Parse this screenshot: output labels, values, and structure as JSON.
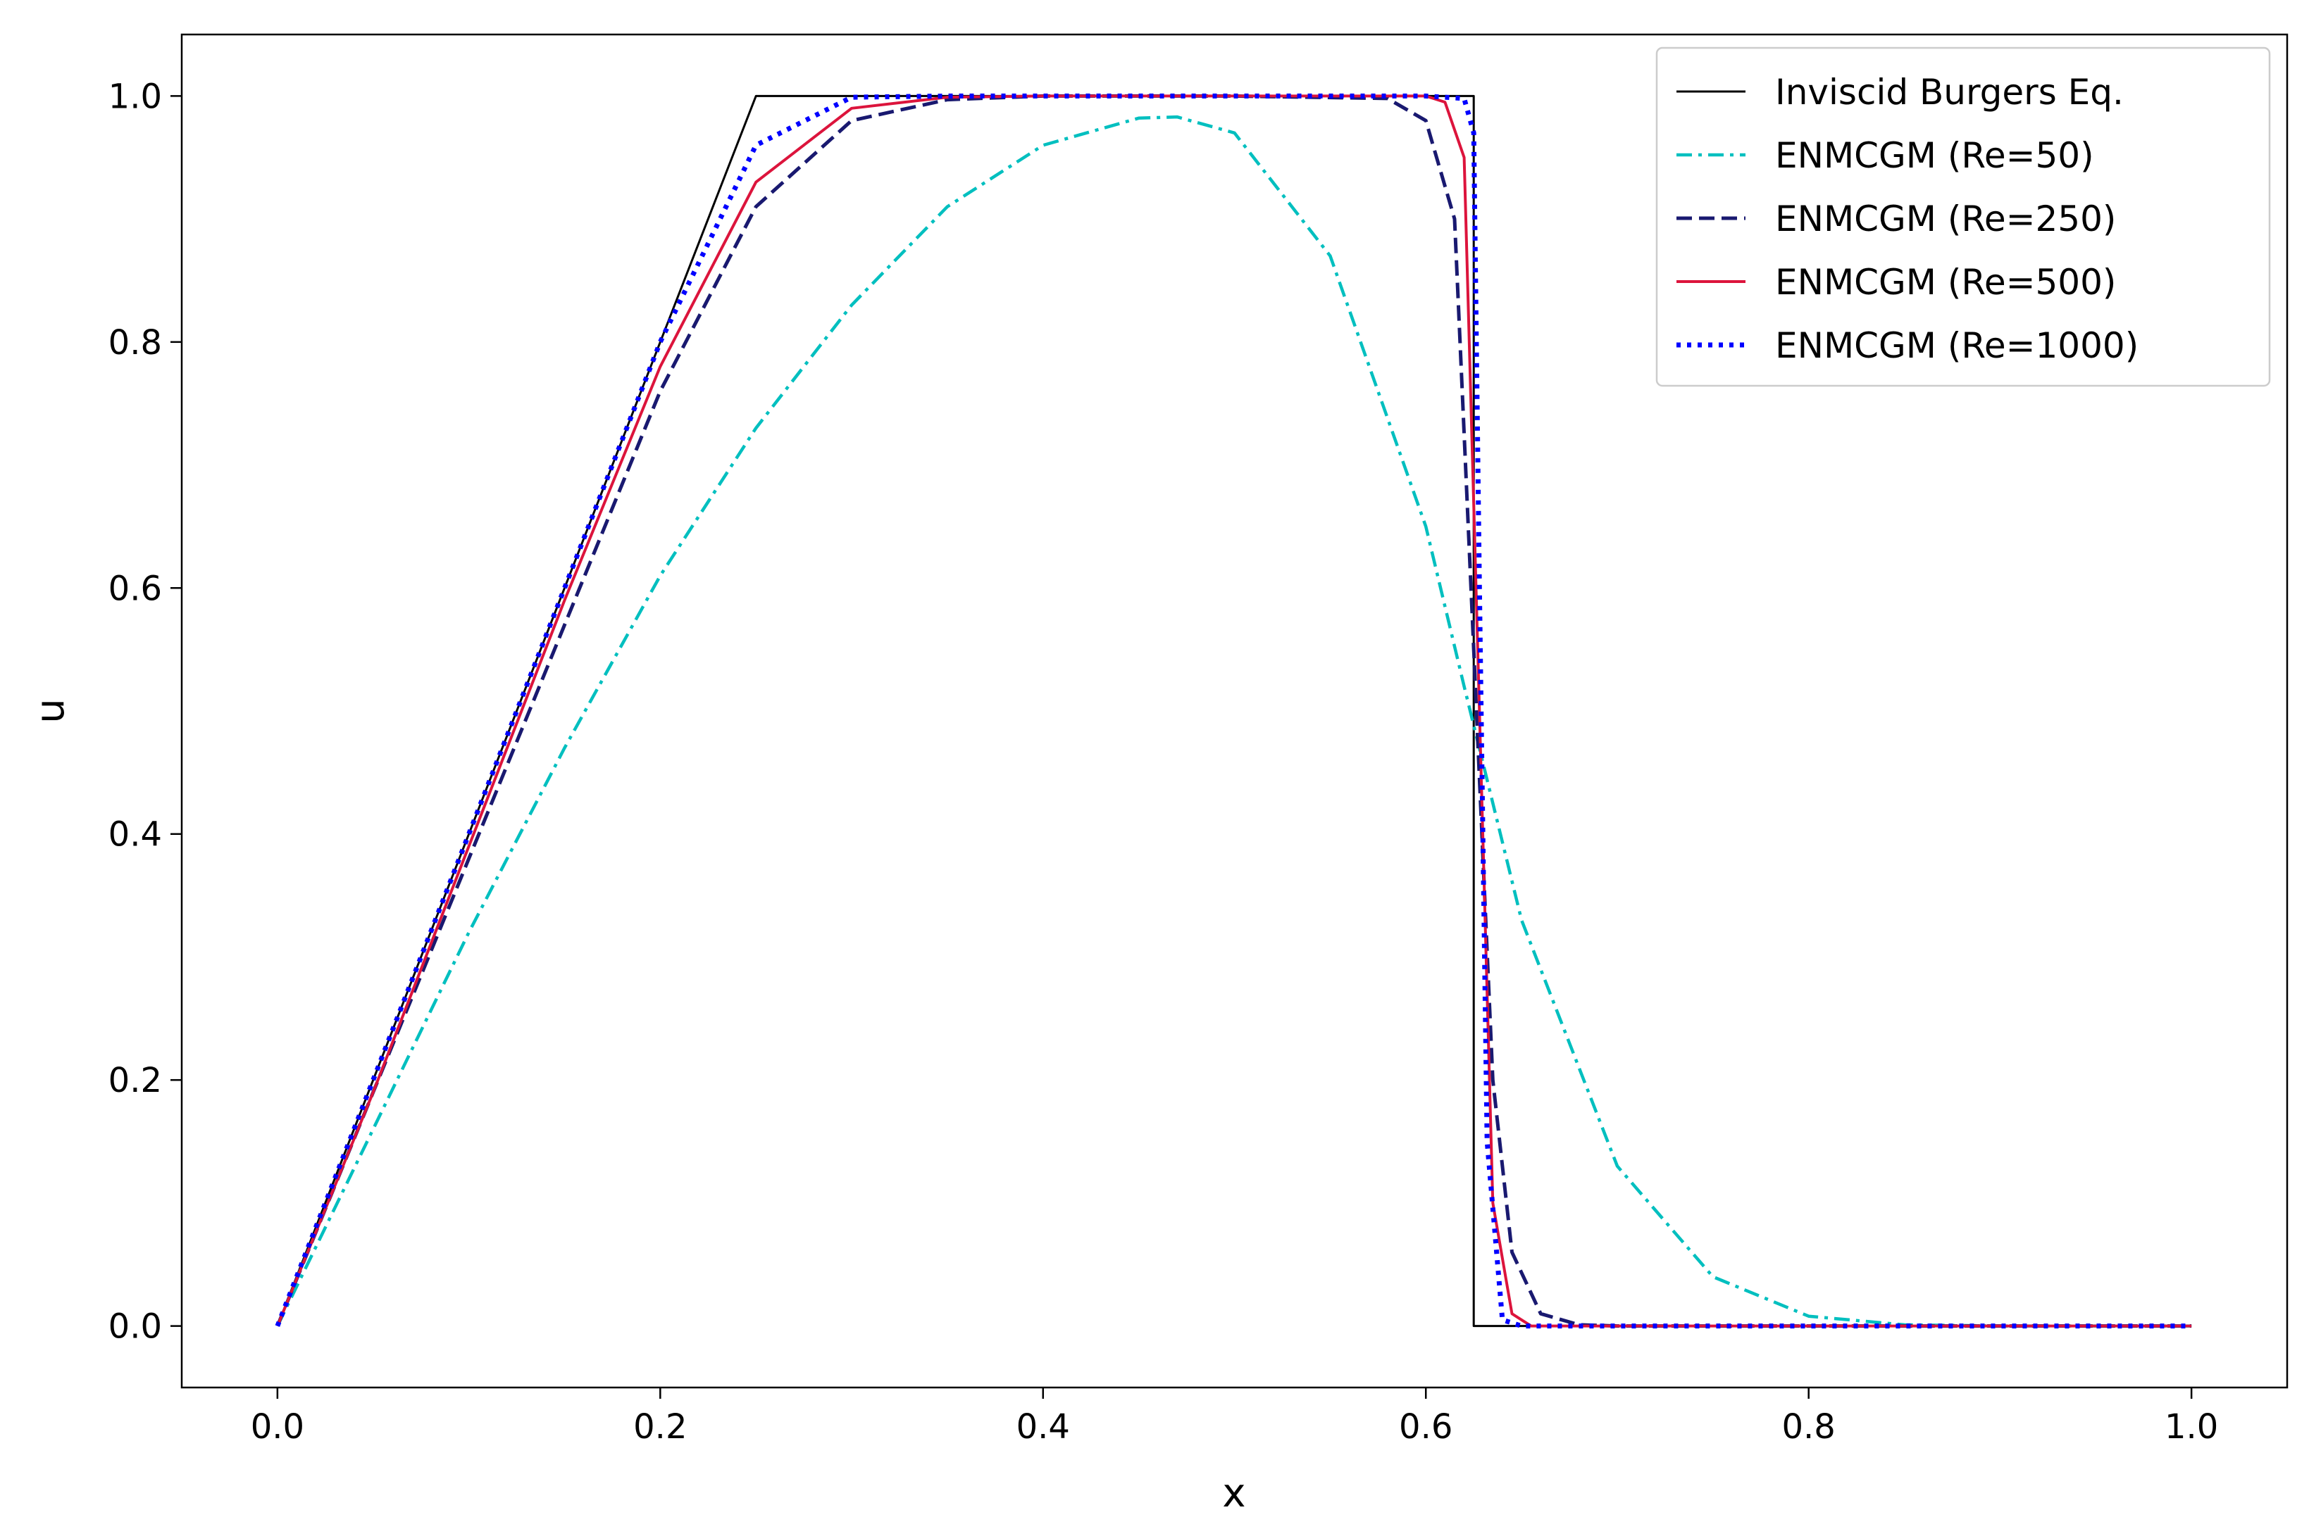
{
  "chart_data": {
    "type": "line",
    "title": "",
    "xlabel": "x",
    "ylabel": "u",
    "xlim": [
      -0.05,
      1.05
    ],
    "ylim": [
      -0.05,
      1.05
    ],
    "xticks": [
      0.0,
      0.2,
      0.4,
      0.6,
      0.8,
      1.0
    ],
    "yticks": [
      0.0,
      0.2,
      0.4,
      0.6,
      0.8,
      1.0
    ],
    "xtick_labels": [
      "0.0",
      "0.2",
      "0.4",
      "0.6",
      "0.8",
      "1.0"
    ],
    "ytick_labels": [
      "0.0",
      "0.2",
      "0.4",
      "0.6",
      "0.8",
      "1.0"
    ],
    "grid": false,
    "legend_position": "top-right",
    "series": [
      {
        "name": "Inviscid Burgers Eq.",
        "color": "#000000",
        "style": "solid",
        "x": [
          0.0,
          0.25,
          0.625,
          0.625,
          1.0
        ],
        "y": [
          0.0,
          1.0,
          1.0,
          0.0,
          0.0
        ]
      },
      {
        "name": "ENMCGM (Re=50)",
        "color": "#00bfbf",
        "style": "dashdot",
        "x": [
          0.0,
          0.05,
          0.1,
          0.15,
          0.2,
          0.25,
          0.3,
          0.35,
          0.4,
          0.45,
          0.47,
          0.5,
          0.55,
          0.6,
          0.62,
          0.65,
          0.7,
          0.75,
          0.8,
          0.85,
          0.9,
          1.0
        ],
        "y": [
          0.0,
          0.16,
          0.32,
          0.47,
          0.61,
          0.73,
          0.83,
          0.91,
          0.96,
          0.982,
          0.983,
          0.97,
          0.87,
          0.65,
          0.52,
          0.33,
          0.13,
          0.04,
          0.008,
          0.001,
          0.0,
          0.0
        ]
      },
      {
        "name": "ENMCGM (Re=250)",
        "color": "#191970",
        "style": "dashed",
        "x": [
          0.0,
          0.05,
          0.1,
          0.15,
          0.2,
          0.25,
          0.3,
          0.35,
          0.4,
          0.5,
          0.58,
          0.6,
          0.615,
          0.625,
          0.635,
          0.645,
          0.66,
          0.68,
          0.7,
          1.0
        ],
        "y": [
          0.0,
          0.19,
          0.38,
          0.57,
          0.76,
          0.91,
          0.98,
          0.997,
          1.0,
          1.0,
          0.998,
          0.98,
          0.9,
          0.55,
          0.2,
          0.06,
          0.01,
          0.001,
          0.0,
          0.0
        ]
      },
      {
        "name": "ENMCGM (Re=500)",
        "color": "#dc143c",
        "style": "solid",
        "x": [
          0.0,
          0.05,
          0.1,
          0.15,
          0.2,
          0.25,
          0.3,
          0.35,
          0.4,
          0.5,
          0.6,
          0.61,
          0.62,
          0.628,
          0.635,
          0.645,
          0.655,
          0.67,
          1.0
        ],
        "y": [
          0.0,
          0.19,
          0.39,
          0.59,
          0.78,
          0.93,
          0.99,
          0.999,
          1.0,
          1.0,
          1.0,
          0.995,
          0.95,
          0.5,
          0.1,
          0.01,
          0.0,
          0.0,
          0.0
        ]
      },
      {
        "name": "ENMCGM (Re=1000)",
        "color": "#0000ff",
        "style": "dotted",
        "x": [
          0.0,
          0.05,
          0.1,
          0.15,
          0.2,
          0.25,
          0.3,
          0.35,
          0.4,
          0.5,
          0.6,
          0.62,
          0.625,
          0.628,
          0.632,
          0.64,
          0.65,
          1.0
        ],
        "y": [
          0.0,
          0.2,
          0.4,
          0.6,
          0.8,
          0.96,
          0.999,
          1.0,
          1.0,
          1.0,
          1.0,
          0.998,
          0.97,
          0.6,
          0.15,
          0.005,
          0.0,
          0.0
        ]
      }
    ]
  }
}
